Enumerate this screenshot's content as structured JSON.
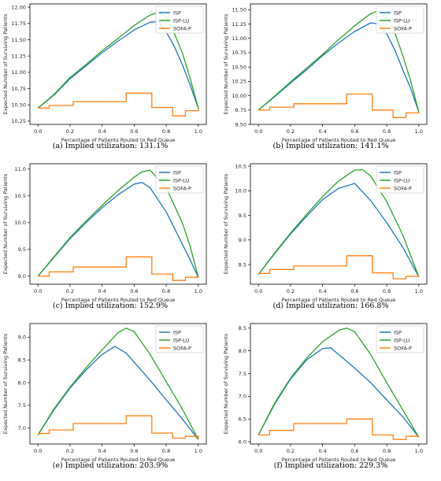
{
  "chart_data": [
    {
      "type": "line",
      "caption": "(a) Implied utilization: 131.1%",
      "xlabel": "Percentage of Patients Routed to Red Queue",
      "ylabel": "Expected Number of Surviving Patients",
      "xlim": [
        -0.05,
        1.05
      ],
      "ylim": [
        10.2,
        12.05
      ],
      "xticks": [
        0.0,
        0.2,
        0.4,
        0.6,
        0.8,
        1.0
      ],
      "xtick_labels": [
        "0.0",
        "0.2",
        "0.4",
        "0.6",
        "0.8",
        "1.0"
      ],
      "yticks": [
        10.25,
        10.5,
        10.75,
        11.0,
        11.25,
        11.5,
        11.75,
        12.0
      ],
      "ytick_labels": [
        "10.25",
        "10.50",
        "10.75",
        "11.00",
        "11.25",
        "11.50",
        "11.75",
        "12.00"
      ],
      "legend": "top-right",
      "series": [
        {
          "name": "ISP",
          "color": "#1f77b4",
          "x": [
            0,
            0.1,
            0.2,
            0.3,
            0.4,
            0.5,
            0.6,
            0.7,
            0.75,
            0.8,
            0.85,
            0.9,
            0.95,
            1.0
          ],
          "y": [
            10.45,
            10.65,
            10.9,
            11.1,
            11.3,
            11.48,
            11.65,
            11.77,
            11.78,
            11.62,
            11.4,
            11.12,
            10.8,
            10.45
          ]
        },
        {
          "name": "ISP-LU",
          "color": "#2ca02c",
          "x": [
            0,
            0.1,
            0.2,
            0.3,
            0.4,
            0.5,
            0.6,
            0.7,
            0.75,
            0.8,
            0.85,
            0.9,
            0.95,
            1.0
          ],
          "y": [
            10.45,
            10.66,
            10.92,
            11.12,
            11.33,
            11.52,
            11.72,
            11.88,
            11.92,
            11.85,
            11.6,
            11.3,
            10.9,
            10.45
          ]
        },
        {
          "name": "SOFA-P",
          "color": "#ff7f0e",
          "step": true,
          "x": [
            0,
            0.07,
            0.22,
            0.55,
            0.71,
            0.84,
            0.92,
            1.0
          ],
          "y": [
            10.45,
            10.49,
            10.55,
            10.68,
            10.46,
            10.33,
            10.41,
            10.45
          ]
        }
      ]
    },
    {
      "type": "line",
      "caption": "(b) Implied utilization: 141.1%",
      "xlabel": "Percentage of Patients Routed to Red Queue",
      "ylabel": "Expected Number of Surviving Patients",
      "xlim": [
        -0.05,
        1.05
      ],
      "ylim": [
        9.5,
        11.6
      ],
      "xticks": [
        0.0,
        0.2,
        0.4,
        0.6,
        0.8,
        1.0
      ],
      "xtick_labels": [
        "0.0",
        "0.2",
        "0.4",
        "0.6",
        "0.8",
        "1.0"
      ],
      "yticks": [
        9.5,
        9.75,
        10.0,
        10.25,
        10.5,
        10.75,
        11.0,
        11.25,
        11.5
      ],
      "ytick_labels": [
        "9.50",
        "9.75",
        "10.00",
        "10.25",
        "10.50",
        "10.75",
        "11.00",
        "11.25",
        "11.50"
      ],
      "legend": "top-right",
      "series": [
        {
          "name": "ISP",
          "color": "#1f77b4",
          "x": [
            0,
            0.1,
            0.2,
            0.3,
            0.4,
            0.5,
            0.6,
            0.7,
            0.75,
            0.8,
            0.85,
            0.9,
            0.95,
            1.0
          ],
          "y": [
            9.75,
            9.98,
            10.22,
            10.45,
            10.7,
            10.92,
            11.12,
            11.27,
            11.25,
            11.08,
            10.8,
            10.45,
            10.12,
            9.72
          ]
        },
        {
          "name": "ISP-LU",
          "color": "#2ca02c",
          "x": [
            0,
            0.1,
            0.2,
            0.3,
            0.4,
            0.5,
            0.6,
            0.7,
            0.75,
            0.8,
            0.85,
            0.9,
            0.95,
            1.0
          ],
          "y": [
            9.75,
            9.99,
            10.24,
            10.48,
            10.72,
            10.98,
            11.22,
            11.43,
            11.48,
            11.38,
            11.1,
            10.7,
            10.25,
            9.72
          ]
        },
        {
          "name": "SOFA-P",
          "color": "#ff7f0e",
          "step": true,
          "x": [
            0,
            0.07,
            0.22,
            0.55,
            0.71,
            0.84,
            0.92,
            1.0
          ],
          "y": [
            9.75,
            9.8,
            9.86,
            10.03,
            9.75,
            9.62,
            9.7,
            9.72
          ]
        }
      ]
    },
    {
      "type": "line",
      "caption": "(c) Implied utilization: 152.9%",
      "xlabel": "Percentage of Patients Routed to Red Queue",
      "ylabel": "Expected Number of Surviving Patients",
      "xlim": [
        -0.05,
        1.05
      ],
      "ylim": [
        8.85,
        11.1
      ],
      "xticks": [
        0.0,
        0.2,
        0.4,
        0.6,
        0.8,
        1.0
      ],
      "xtick_labels": [
        "0.0",
        "0.2",
        "0.4",
        "0.6",
        "0.8",
        "1.0"
      ],
      "yticks": [
        9.0,
        9.5,
        10.0,
        10.5,
        11.0
      ],
      "ytick_labels": [
        "9.0",
        "9.5",
        "10.0",
        "10.5",
        "11.0"
      ],
      "legend": "top-right",
      "series": [
        {
          "name": "ISP",
          "color": "#1f77b4",
          "x": [
            0,
            0.1,
            0.2,
            0.3,
            0.4,
            0.5,
            0.6,
            0.65,
            0.7,
            0.8,
            0.9,
            0.95,
            1.0
          ],
          "y": [
            9.0,
            9.35,
            9.7,
            10.0,
            10.28,
            10.52,
            10.72,
            10.75,
            10.65,
            10.2,
            9.6,
            9.3,
            8.98
          ]
        },
        {
          "name": "ISP-LU",
          "color": "#2ca02c",
          "x": [
            0,
            0.1,
            0.2,
            0.3,
            0.4,
            0.5,
            0.6,
            0.65,
            0.7,
            0.8,
            0.9,
            0.95,
            1.0
          ],
          "y": [
            9.0,
            9.36,
            9.72,
            10.03,
            10.32,
            10.6,
            10.85,
            10.95,
            10.98,
            10.65,
            10.0,
            9.55,
            8.98
          ]
        },
        {
          "name": "SOFA-P",
          "color": "#ff7f0e",
          "step": true,
          "x": [
            0,
            0.07,
            0.22,
            0.55,
            0.71,
            0.84,
            0.92,
            1.0
          ],
          "y": [
            9.0,
            9.08,
            9.17,
            9.36,
            9.04,
            8.92,
            8.98,
            8.98
          ]
        }
      ]
    },
    {
      "type": "line",
      "caption": "(d) Implied utilization: 166.8%",
      "xlabel": "Percentage of Patients Routed to Red Queue",
      "ylabel": "Expected Number of Surviving Patients",
      "xlim": [
        -0.05,
        1.05
      ],
      "ylim": [
        8.1,
        10.55
      ],
      "xticks": [
        0.0,
        0.2,
        0.4,
        0.6,
        0.8,
        1.0
      ],
      "xtick_labels": [
        "0.0",
        "0.2",
        "0.4",
        "0.6",
        "0.8",
        "1.0"
      ],
      "yticks": [
        8.5,
        9.0,
        9.5,
        10.0,
        10.5
      ],
      "ytick_labels": [
        "8.5",
        "9.0",
        "9.5",
        "10.0",
        "10.5"
      ],
      "legend": "top-right",
      "series": [
        {
          "name": "ISP",
          "color": "#1f77b4",
          "x": [
            0,
            0.1,
            0.2,
            0.3,
            0.4,
            0.5,
            0.6,
            0.7,
            0.8,
            0.9,
            1.0
          ],
          "y": [
            8.3,
            8.72,
            9.12,
            9.48,
            9.82,
            10.05,
            10.15,
            9.8,
            9.35,
            8.85,
            8.25
          ]
        },
        {
          "name": "ISP-LU",
          "color": "#2ca02c",
          "x": [
            0,
            0.1,
            0.2,
            0.3,
            0.4,
            0.5,
            0.6,
            0.65,
            0.7,
            0.8,
            0.9,
            1.0
          ],
          "y": [
            8.3,
            8.73,
            9.14,
            9.52,
            9.88,
            10.2,
            10.42,
            10.43,
            10.3,
            9.78,
            9.1,
            8.25
          ]
        },
        {
          "name": "SOFA-P",
          "color": "#ff7f0e",
          "step": true,
          "x": [
            0,
            0.07,
            0.22,
            0.55,
            0.71,
            0.84,
            0.92,
            1.0
          ],
          "y": [
            8.32,
            8.4,
            8.47,
            8.68,
            8.33,
            8.21,
            8.26,
            8.25
          ]
        }
      ]
    },
    {
      "type": "line",
      "caption": "(e) Implied utilization: 203.9%",
      "xlabel": "Percentage of Patients Routed to Red Queue",
      "ylabel": "Expected Number of Surviving Patients",
      "xlim": [
        -0.05,
        1.05
      ],
      "ylim": [
        6.65,
        9.3
      ],
      "xticks": [
        0.0,
        0.2,
        0.4,
        0.6,
        0.8,
        1.0
      ],
      "xtick_labels": [
        "0.0",
        "0.2",
        "0.4",
        "0.6",
        "0.8",
        "1.0"
      ],
      "yticks": [
        7.0,
        7.5,
        8.0,
        8.5,
        9.0
      ],
      "ytick_labels": [
        "7.0",
        "7.5",
        "8.0",
        "8.5",
        "9.0"
      ],
      "legend": "top-right",
      "series": [
        {
          "name": "ISP",
          "color": "#1f77b4",
          "x": [
            0,
            0.1,
            0.2,
            0.3,
            0.4,
            0.48,
            0.55,
            0.6,
            0.7,
            0.8,
            0.9,
            1.0
          ],
          "y": [
            6.85,
            7.4,
            7.88,
            8.28,
            8.62,
            8.8,
            8.65,
            8.45,
            8.05,
            7.62,
            7.2,
            6.75
          ]
        },
        {
          "name": "ISP-LU",
          "color": "#2ca02c",
          "x": [
            0,
            0.1,
            0.2,
            0.3,
            0.4,
            0.5,
            0.55,
            0.6,
            0.7,
            0.8,
            0.9,
            1.0
          ],
          "y": [
            6.85,
            7.42,
            7.9,
            8.33,
            8.72,
            9.1,
            9.2,
            9.12,
            8.62,
            8.02,
            7.42,
            6.75
          ]
        },
        {
          "name": "SOFA-P",
          "color": "#ff7f0e",
          "step": true,
          "x": [
            0,
            0.07,
            0.22,
            0.55,
            0.71,
            0.84,
            0.92,
            1.0
          ],
          "y": [
            6.88,
            6.96,
            7.1,
            7.27,
            6.89,
            6.78,
            6.82,
            6.76
          ]
        }
      ]
    },
    {
      "type": "line",
      "caption": "(f) Implied utilization: 229.3%",
      "xlabel": "Percentage of Patients Routed to Red Queue",
      "ylabel": "Expected Number of Surviving Patients",
      "xlim": [
        -0.05,
        1.05
      ],
      "ylim": [
        5.95,
        8.6
      ],
      "xticks": [
        0.0,
        0.2,
        0.4,
        0.6,
        0.8,
        1.0
      ],
      "xtick_labels": [
        "0.0",
        "0.2",
        "0.4",
        "0.6",
        "0.8",
        "1.0"
      ],
      "yticks": [
        6.0,
        6.5,
        7.0,
        7.5,
        8.0,
        8.5
      ],
      "ytick_labels": [
        "6.0",
        "6.5",
        "7.0",
        "7.5",
        "8.0",
        "8.5"
      ],
      "legend": "top-right",
      "series": [
        {
          "name": "ISP",
          "color": "#1f77b4",
          "x": [
            0,
            0.1,
            0.2,
            0.3,
            0.4,
            0.45,
            0.5,
            0.6,
            0.7,
            0.8,
            0.9,
            1.0
          ],
          "y": [
            6.15,
            6.82,
            7.38,
            7.8,
            8.05,
            8.07,
            7.92,
            7.62,
            7.3,
            6.92,
            6.55,
            6.1
          ]
        },
        {
          "name": "ISP-LU",
          "color": "#2ca02c",
          "x": [
            0,
            0.1,
            0.2,
            0.3,
            0.4,
            0.5,
            0.55,
            0.6,
            0.7,
            0.8,
            0.9,
            1.0
          ],
          "y": [
            6.15,
            6.84,
            7.4,
            7.84,
            8.2,
            8.45,
            8.5,
            8.42,
            7.92,
            7.3,
            6.7,
            6.1
          ]
        },
        {
          "name": "SOFA-P",
          "color": "#ff7f0e",
          "step": true,
          "x": [
            0,
            0.07,
            0.22,
            0.55,
            0.71,
            0.84,
            0.92,
            1.0
          ],
          "y": [
            6.15,
            6.25,
            6.4,
            6.5,
            6.15,
            6.05,
            6.12,
            6.1
          ]
        }
      ]
    }
  ]
}
